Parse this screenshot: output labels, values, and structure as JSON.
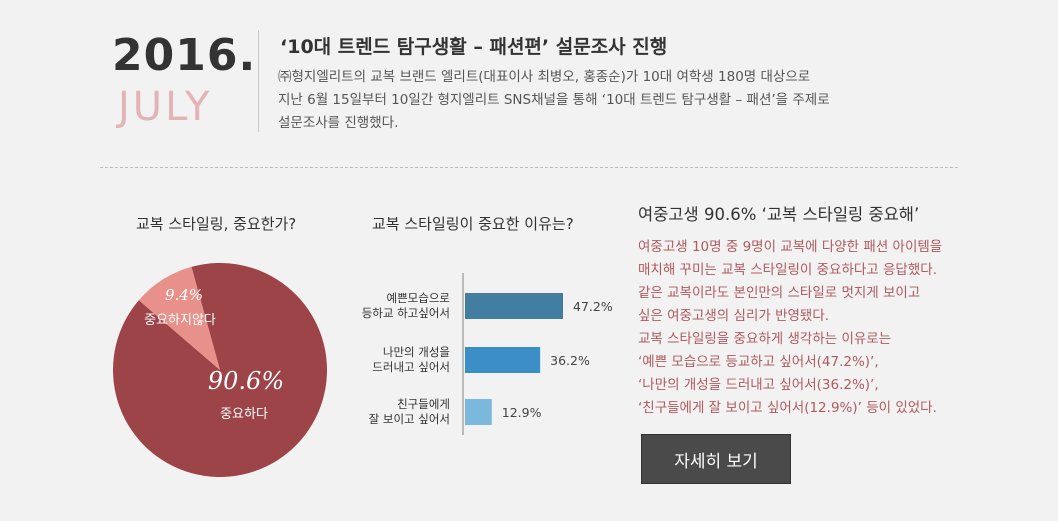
{
  "header": {
    "year": "2016.",
    "month": "JULY",
    "headline": "‘10대 트렌드 탐구생활 – 패션편’ 설문조사 진행",
    "intro": [
      "㈜형지엘리트의 교복 브랜드 엘리트(대표이사 최병오, 홍종순)가 10대 여학생 180명 대상으로",
      "지난 6월 15일부터 10일간 형지엘리트 SNS채널을 통해 ‘10대 트렌드 탐구생활 – 패션’을 주제로",
      "설문조사를 진행했다."
    ]
  },
  "chart_data": [
    {
      "type": "pie",
      "title": "교복 스타일링, 중요한가?",
      "slices": [
        {
          "label": "중요하다",
          "value": 90.6,
          "value_label": "90.6%",
          "color": "#9c4448"
        },
        {
          "label": "중요하지않다",
          "value": 9.4,
          "value_label": "9.4%",
          "color": "#e8908a"
        }
      ]
    },
    {
      "type": "bar",
      "orientation": "horizontal",
      "title": "교복 스타일링이 중요한 이유는?",
      "categories": [
        [
          "예쁜모습으로",
          "등하교 하고싶어서"
        ],
        [
          "나만의 개성을",
          "드러내고 싶어서"
        ],
        [
          "친구들에게",
          "잘 보이고 싶어서"
        ]
      ],
      "values": [
        47.2,
        36.2,
        12.9
      ],
      "value_labels": [
        "47.2%",
        "36.2%",
        "12.9%"
      ],
      "colors": [
        "#417ea0",
        "#3c8ec7",
        "#7ab8de"
      ]
    }
  ],
  "summary": {
    "title": "여중고생 90.6% ‘교복 스타일링 중요해’",
    "body": [
      "여중고생 10명 중 9명이 교복에 다양한 패션 아이템을",
      "매치해 꾸미는 교복 스타일링이 중요하다고 응답했다.",
      "같은 교복이라도 본인만의 스타일로 멋지게 보이고",
      "싶은 여중고생의 심리가 반영됐다.",
      "교복 스타일링을 중요하게 생각하는 이유로는",
      "‘예쁜 모습으로 등교하고 싶어서(47.2%)’,",
      "‘나만의 개성을 드러내고 싶어서(36.2%)’,",
      "‘친구들에게 잘 보이고 싶어서(12.9%)’ 등이 있었다."
    ],
    "button_label": "자세히 보기"
  }
}
